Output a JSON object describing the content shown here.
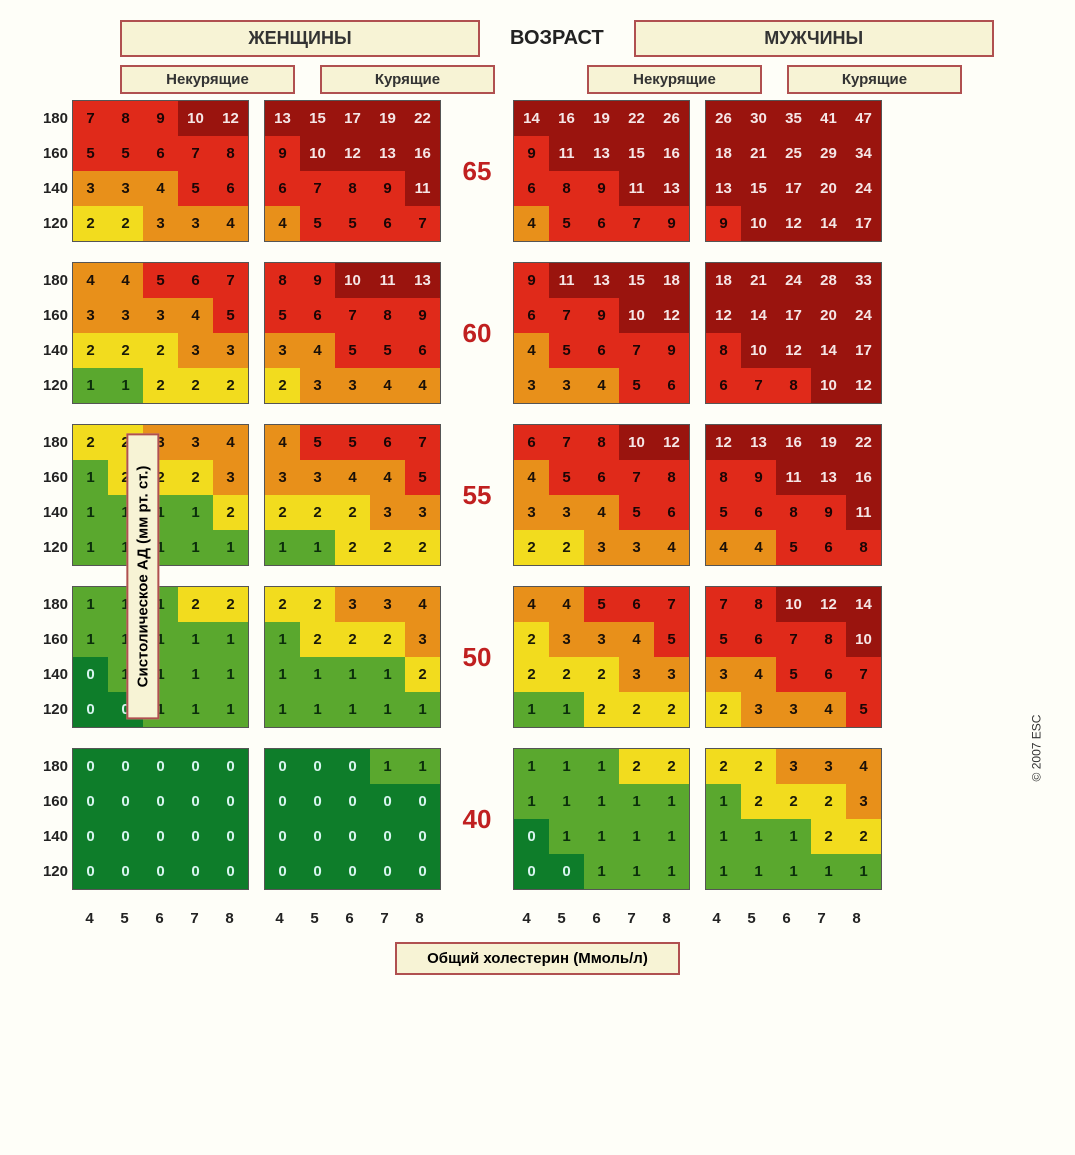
{
  "labels": {
    "women": "ЖЕНЩИНЫ",
    "men": "МУЖЧИНЫ",
    "age": "ВОЗРАСТ",
    "nonsmoker": "Некурящие",
    "smoker": "Курящие",
    "yaxis": "Систолическое АД (мм рт. ст.)",
    "xaxis": "Общий холестерин (Ммоль/л)",
    "copyright": "© 2007 ESC"
  },
  "bp_levels": [
    180,
    160,
    140,
    120
  ],
  "chol_levels": [
    4,
    5,
    6,
    7,
    8
  ],
  "ages": [
    65,
    60,
    55,
    50,
    40
  ],
  "colors": {
    "0": {
      "bg": "#0e7d2a",
      "fg": "#d8f5f0"
    },
    "1": {
      "bg": "#5aa82e",
      "fg": "#0b2e0b"
    },
    "2": {
      "bg": "#f2dc1e",
      "fg": "#1a1a08"
    },
    "3": {
      "bg": "#e8901a",
      "fg": "#1a1008"
    },
    "4": {
      "bg": "#e02a1a",
      "fg": "#1a0505"
    },
    "5": {
      "bg": "#9a140e",
      "fg": "#f5e6e6"
    }
  },
  "data": {
    "65": {
      "wns": [
        [
          7,
          8,
          9,
          10,
          12
        ],
        [
          5,
          5,
          6,
          7,
          8
        ],
        [
          3,
          3,
          4,
          5,
          6
        ],
        [
          2,
          2,
          3,
          3,
          4
        ]
      ],
      "ws": [
        [
          13,
          15,
          17,
          19,
          22
        ],
        [
          9,
          10,
          12,
          13,
          16
        ],
        [
          6,
          7,
          8,
          9,
          11
        ],
        [
          4,
          5,
          5,
          6,
          7
        ]
      ],
      "mns": [
        [
          14,
          16,
          19,
          22,
          26
        ],
        [
          9,
          11,
          13,
          15,
          16
        ],
        [
          6,
          8,
          9,
          11,
          13
        ],
        [
          4,
          5,
          6,
          7,
          9
        ]
      ],
      "ms": [
        [
          26,
          30,
          35,
          41,
          47
        ],
        [
          18,
          21,
          25,
          29,
          34
        ],
        [
          13,
          15,
          17,
          20,
          24
        ],
        [
          9,
          10,
          12,
          14,
          17
        ]
      ]
    },
    "60": {
      "wns": [
        [
          4,
          4,
          5,
          6,
          7
        ],
        [
          3,
          3,
          3,
          4,
          5
        ],
        [
          2,
          2,
          2,
          3,
          3
        ],
        [
          1,
          1,
          2,
          2,
          2
        ]
      ],
      "ws": [
        [
          8,
          9,
          10,
          11,
          13
        ],
        [
          5,
          6,
          7,
          8,
          9
        ],
        [
          3,
          4,
          5,
          5,
          6
        ],
        [
          2,
          3,
          3,
          4,
          4
        ]
      ],
      "mns": [
        [
          9,
          11,
          13,
          15,
          18
        ],
        [
          6,
          7,
          9,
          10,
          12
        ],
        [
          4,
          5,
          6,
          7,
          9
        ],
        [
          3,
          3,
          4,
          5,
          6
        ]
      ],
      "ms": [
        [
          18,
          21,
          24,
          28,
          33
        ],
        [
          12,
          14,
          17,
          20,
          24
        ],
        [
          8,
          10,
          12,
          14,
          17
        ],
        [
          6,
          7,
          8,
          10,
          12
        ]
      ]
    },
    "55": {
      "wns": [
        [
          2,
          2,
          3,
          3,
          4
        ],
        [
          1,
          2,
          2,
          2,
          3
        ],
        [
          1,
          1,
          1,
          1,
          2
        ],
        [
          1,
          1,
          1,
          1,
          1
        ]
      ],
      "ws": [
        [
          4,
          5,
          5,
          6,
          7
        ],
        [
          3,
          3,
          4,
          4,
          5
        ],
        [
          2,
          2,
          2,
          3,
          3
        ],
        [
          1,
          1,
          2,
          2,
          2
        ]
      ],
      "mns": [
        [
          6,
          7,
          8,
          10,
          12
        ],
        [
          4,
          5,
          6,
          7,
          8
        ],
        [
          3,
          3,
          4,
          5,
          6
        ],
        [
          2,
          2,
          3,
          3,
          4
        ]
      ],
      "ms": [
        [
          12,
          13,
          16,
          19,
          22
        ],
        [
          8,
          9,
          11,
          13,
          16
        ],
        [
          5,
          6,
          8,
          9,
          11
        ],
        [
          4,
          4,
          5,
          6,
          8
        ]
      ]
    },
    "50": {
      "wns": [
        [
          1,
          1,
          1,
          2,
          2
        ],
        [
          1,
          1,
          1,
          1,
          1
        ],
        [
          0,
          1,
          1,
          1,
          1
        ],
        [
          0,
          0,
          1,
          1,
          1
        ]
      ],
      "ws": [
        [
          2,
          2,
          3,
          3,
          4
        ],
        [
          1,
          2,
          2,
          2,
          3
        ],
        [
          1,
          1,
          1,
          1,
          2
        ],
        [
          1,
          1,
          1,
          1,
          1
        ]
      ],
      "mns": [
        [
          4,
          4,
          5,
          6,
          7
        ],
        [
          2,
          3,
          3,
          4,
          5
        ],
        [
          2,
          2,
          2,
          3,
          3
        ],
        [
          1,
          1,
          2,
          2,
          2
        ]
      ],
      "ms": [
        [
          7,
          8,
          10,
          12,
          14
        ],
        [
          5,
          6,
          7,
          8,
          10
        ],
        [
          3,
          4,
          5,
          6,
          7
        ],
        [
          2,
          3,
          3,
          4,
          5
        ]
      ]
    },
    "40": {
      "wns": [
        [
          0,
          0,
          0,
          0,
          0
        ],
        [
          0,
          0,
          0,
          0,
          0
        ],
        [
          0,
          0,
          0,
          0,
          0
        ],
        [
          0,
          0,
          0,
          0,
          0
        ]
      ],
      "ws": [
        [
          0,
          0,
          0,
          1,
          1
        ],
        [
          0,
          0,
          0,
          0,
          0
        ],
        [
          0,
          0,
          0,
          0,
          0
        ],
        [
          0,
          0,
          0,
          0,
          0
        ]
      ],
      "mns": [
        [
          1,
          1,
          1,
          2,
          2
        ],
        [
          1,
          1,
          1,
          1,
          1
        ],
        [
          0,
          1,
          1,
          1,
          1
        ],
        [
          0,
          0,
          1,
          1,
          1
        ]
      ],
      "ms": [
        [
          2,
          2,
          3,
          3,
          4
        ],
        [
          1,
          2,
          2,
          2,
          3
        ],
        [
          1,
          1,
          1,
          2,
          2
        ],
        [
          1,
          1,
          1,
          1,
          1
        ]
      ]
    }
  }
}
